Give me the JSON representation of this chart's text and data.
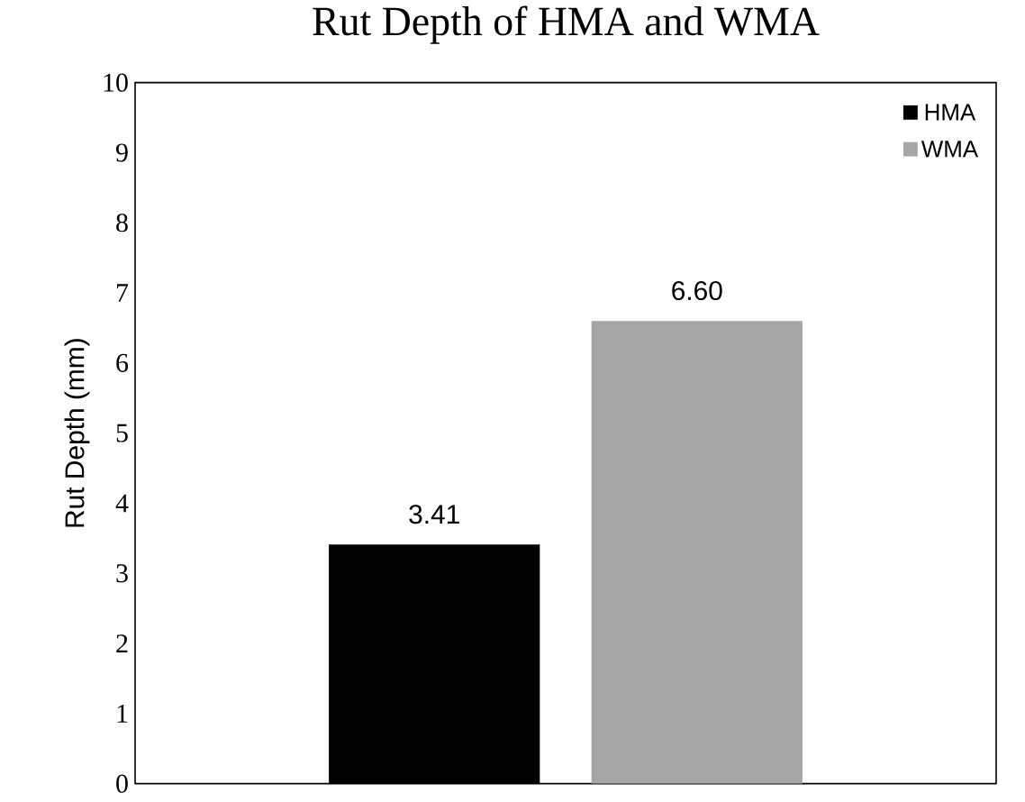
{
  "chart_data": {
    "type": "bar",
    "title": "Rut Depth of HMA and WMA",
    "ylabel": "Rut Depth (mm)",
    "categories": [
      null
    ],
    "series": [
      {
        "name": "HMA",
        "color": "#000000",
        "values": [
          3.41
        ],
        "value_labels": [
          "3.41"
        ]
      },
      {
        "name": "WMA",
        "color": "#a6a6a6",
        "values": [
          6.6
        ],
        "value_labels": [
          "6.60"
        ]
      }
    ],
    "ylim": [
      0,
      10
    ],
    "yticks": [
      0,
      1,
      2,
      3,
      4,
      5,
      6,
      7,
      8,
      9,
      10
    ],
    "grid": false,
    "legend": "top right"
  }
}
